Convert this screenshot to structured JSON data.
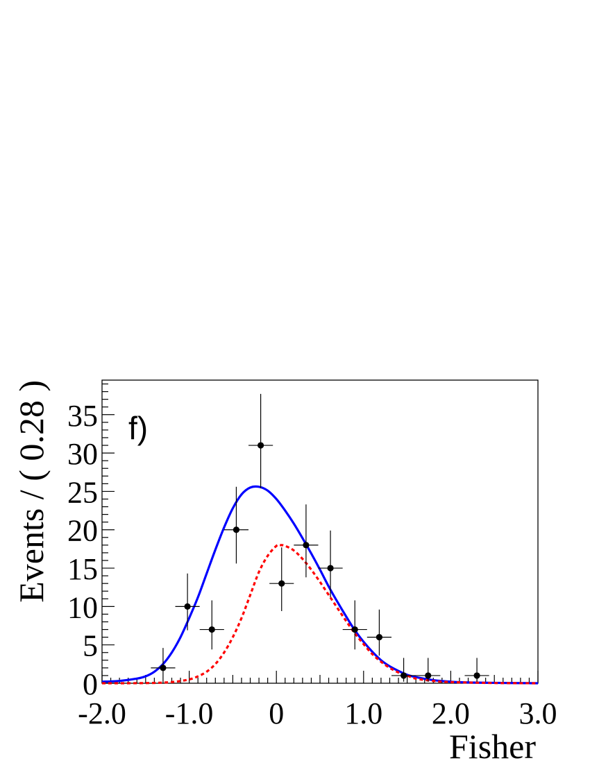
{
  "chart_data": {
    "type": "scatter",
    "panel_label": "f)",
    "xlabel": "Fisher",
    "ylabel": "Events / ( 0.28 )",
    "xlim": [
      -2.0,
      3.0
    ],
    "ylim": [
      0,
      39.5
    ],
    "x_ticks": [
      -2.0,
      -1.0,
      0,
      1.0,
      2.0,
      3.0
    ],
    "x_tick_labels": [
      "-2.0",
      "-1.0",
      "0",
      "1.0",
      "2.0",
      "3.0"
    ],
    "y_ticks": [
      0,
      5,
      10,
      15,
      20,
      25,
      30,
      35
    ],
    "y_tick_labels": [
      "0",
      "5",
      "10",
      "15",
      "20",
      "25",
      "30",
      "35"
    ],
    "grid": false,
    "data_points": {
      "x": [
        -1.3,
        -1.02,
        -0.74,
        -0.46,
        -0.18,
        0.06,
        0.34,
        0.62,
        0.9,
        1.18,
        1.46,
        1.74,
        2.3
      ],
      "y": [
        2,
        10,
        7,
        20,
        31,
        13,
        18,
        15,
        7,
        6,
        1,
        1,
        1
      ],
      "yerr_up": [
        2.6,
        4.3,
        3.8,
        5.6,
        6.7,
        4.7,
        5.3,
        4.9,
        3.8,
        3.6,
        2.3,
        2.3,
        2.3
      ],
      "yerr_dn": [
        1.3,
        3.1,
        2.6,
        4.4,
        5.6,
        3.6,
        4.2,
        3.8,
        2.6,
        2.4,
        0.8,
        0.8,
        0.8
      ],
      "xerr": 0.14
    },
    "series": [
      {
        "style": "solid",
        "color": "#0000ff",
        "x": [
          -2.0,
          -1.8,
          -1.6,
          -1.5,
          -1.4,
          -1.3,
          -1.2,
          -1.1,
          -1.0,
          -0.9,
          -0.8,
          -0.7,
          -0.6,
          -0.5,
          -0.4,
          -0.3,
          -0.2,
          -0.1,
          0.0,
          0.1,
          0.2,
          0.3,
          0.4,
          0.5,
          0.6,
          0.7,
          0.8,
          0.9,
          1.0,
          1.1,
          1.2,
          1.3,
          1.4,
          1.5,
          1.6,
          1.8,
          2.0,
          2.2,
          2.5,
          3.0
        ],
        "y": [
          0.2,
          0.3,
          0.6,
          0.9,
          1.5,
          2.5,
          4.0,
          6.0,
          8.5,
          11.2,
          14.3,
          17.4,
          20.3,
          22.8,
          24.6,
          25.5,
          25.6,
          25.1,
          24.0,
          22.5,
          20.8,
          18.9,
          16.9,
          14.8,
          12.6,
          10.6,
          8.7,
          6.9,
          5.4,
          4.1,
          3.0,
          2.2,
          1.6,
          1.1,
          0.8,
          0.4,
          0.2,
          0.1,
          0.05,
          0.0
        ]
      },
      {
        "style": "dashed",
        "color": "#ff0000",
        "x": [
          -2.0,
          -1.5,
          -1.2,
          -1.0,
          -0.9,
          -0.8,
          -0.7,
          -0.6,
          -0.5,
          -0.4,
          -0.3,
          -0.2,
          -0.1,
          0.0,
          0.05,
          0.1,
          0.2,
          0.3,
          0.4,
          0.5,
          0.6,
          0.7,
          0.8,
          0.9,
          1.0,
          1.1,
          1.2,
          1.3,
          1.4,
          1.5,
          1.6,
          1.8,
          2.0,
          2.5,
          3.0
        ],
        "y": [
          0.0,
          0.02,
          0.15,
          0.5,
          0.9,
          1.5,
          2.5,
          4.0,
          6.0,
          8.5,
          11.5,
          14.5,
          16.6,
          17.9,
          18.0,
          17.9,
          17.3,
          16.2,
          14.8,
          13.2,
          11.5,
          9.8,
          8.1,
          6.5,
          5.1,
          3.8,
          2.8,
          2.0,
          1.4,
          1.0,
          0.6,
          0.3,
          0.15,
          0.03,
          0.0
        ]
      }
    ]
  }
}
